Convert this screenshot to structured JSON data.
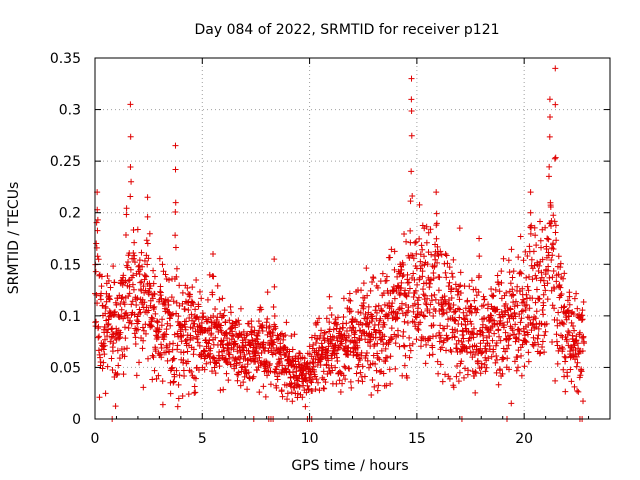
{
  "chart_data": {
    "type": "scatter",
    "title": "Day 084 of 2022, SRMTID for receiver p121",
    "xlabel": "GPS time / hours",
    "ylabel": "SRMTID / TECUs",
    "xlim": [
      0,
      24
    ],
    "ylim": [
      0,
      0.35
    ],
    "xticks": [
      0,
      5,
      10,
      15,
      20
    ],
    "xtick_labels": [
      "0",
      "5",
      "10",
      "15",
      "20"
    ],
    "yticks": [
      0,
      0.05,
      0.1,
      0.15,
      0.2,
      0.25,
      0.3,
      0.35
    ],
    "ytick_labels": [
      "0",
      "0.05",
      "0.1",
      "0.15",
      "0.2",
      "0.25",
      "0.3",
      "0.35"
    ],
    "grid": true,
    "marker": "plus",
    "color": "#e00000",
    "seed": 84,
    "samples": 2400,
    "x_end_hours": 22.8,
    "zero_value_times_hours": [
      0.8,
      7.4,
      8.1,
      8.2,
      8.3,
      9.9,
      10.0,
      10.1,
      17.1,
      19.2,
      22.6,
      22.7
    ],
    "activity_profile": [
      {
        "hour": 0.0,
        "mean": 0.105,
        "spread": 0.035
      },
      {
        "hour": 0.5,
        "mean": 0.09,
        "spread": 0.03
      },
      {
        "hour": 1.0,
        "mean": 0.085,
        "spread": 0.025
      },
      {
        "hour": 1.5,
        "mean": 0.12,
        "spread": 0.04
      },
      {
        "hour": 2.0,
        "mean": 0.115,
        "spread": 0.035
      },
      {
        "hour": 3.0,
        "mean": 0.09,
        "spread": 0.03
      },
      {
        "hour": 4.0,
        "mean": 0.085,
        "spread": 0.03
      },
      {
        "hour": 5.0,
        "mean": 0.08,
        "spread": 0.025
      },
      {
        "hour": 6.0,
        "mean": 0.075,
        "spread": 0.022
      },
      {
        "hour": 7.0,
        "mean": 0.065,
        "spread": 0.02
      },
      {
        "hour": 8.0,
        "mean": 0.075,
        "spread": 0.022
      },
      {
        "hour": 9.0,
        "mean": 0.05,
        "spread": 0.015
      },
      {
        "hour": 9.8,
        "mean": 0.04,
        "spread": 0.012
      },
      {
        "hour": 10.5,
        "mean": 0.065,
        "spread": 0.018
      },
      {
        "hour": 11.5,
        "mean": 0.07,
        "spread": 0.02
      },
      {
        "hour": 12.5,
        "mean": 0.08,
        "spread": 0.025
      },
      {
        "hour": 13.5,
        "mean": 0.09,
        "spread": 0.028
      },
      {
        "hour": 14.5,
        "mean": 0.115,
        "spread": 0.035
      },
      {
        "hour": 15.5,
        "mean": 0.12,
        "spread": 0.035
      },
      {
        "hour": 16.5,
        "mean": 0.1,
        "spread": 0.03
      },
      {
        "hour": 17.5,
        "mean": 0.08,
        "spread": 0.025
      },
      {
        "hour": 18.5,
        "mean": 0.085,
        "spread": 0.025
      },
      {
        "hour": 19.5,
        "mean": 0.1,
        "spread": 0.03
      },
      {
        "hour": 20.5,
        "mean": 0.115,
        "spread": 0.035
      },
      {
        "hour": 21.3,
        "mean": 0.14,
        "spread": 0.045
      },
      {
        "hour": 22.0,
        "mean": 0.08,
        "spread": 0.025
      },
      {
        "hour": 22.8,
        "mean": 0.075,
        "spread": 0.02
      }
    ],
    "spikes": [
      {
        "hour": 0.1,
        "peak": 0.22,
        "width": 0.15
      },
      {
        "hour": 1.65,
        "peak": 0.305,
        "width": 0.08
      },
      {
        "hour": 2.45,
        "peak": 0.215,
        "width": 0.12
      },
      {
        "hour": 3.75,
        "peak": 0.265,
        "width": 0.08
      },
      {
        "hour": 5.5,
        "peak": 0.16,
        "width": 0.1
      },
      {
        "hour": 8.35,
        "peak": 0.155,
        "width": 0.08
      },
      {
        "hour": 14.75,
        "peak": 0.33,
        "width": 0.08
      },
      {
        "hour": 15.9,
        "peak": 0.22,
        "width": 0.15
      },
      {
        "hour": 17.0,
        "peak": 0.185,
        "width": 0.1
      },
      {
        "hour": 17.9,
        "peak": 0.175,
        "width": 0.1
      },
      {
        "hour": 20.3,
        "peak": 0.22,
        "width": 0.12
      },
      {
        "hour": 21.2,
        "peak": 0.31,
        "width": 0.12
      },
      {
        "hour": 21.45,
        "peak": 0.34,
        "width": 0.05
      }
    ]
  }
}
